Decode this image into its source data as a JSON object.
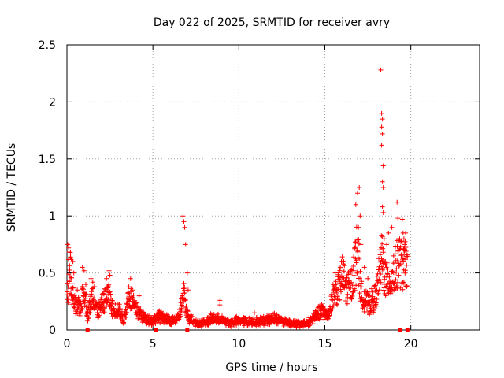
{
  "chart_data": {
    "type": "scatter",
    "title": "Day 022 of 2025, SRMTID for receiver avry",
    "xlabel": "GPS time / hours",
    "ylabel": "SRMTID / TECUs",
    "xlim": [
      0,
      24
    ],
    "ylim": [
      0,
      2.5
    ],
    "xticks": [
      0,
      5,
      10,
      15,
      20
    ],
    "yticks": [
      0,
      0.5,
      1,
      1.5,
      2,
      2.5
    ],
    "xtick_labels": [
      "0",
      "5",
      "10",
      "15",
      "20"
    ],
    "ytick_labels": [
      "0",
      "0.5",
      "1",
      "1.5",
      "2",
      "2.5"
    ],
    "grid": true,
    "marker": "+",
    "color": "#ff0000",
    "series": [
      {
        "name": "SRMTID",
        "profile": [
          [
            0.0,
            0.25
          ],
          [
            0.15,
            0.55
          ],
          [
            0.3,
            0.3
          ],
          [
            0.5,
            0.18
          ],
          [
            0.8,
            0.2
          ],
          [
            1.0,
            0.35
          ],
          [
            1.2,
            0.12
          ],
          [
            1.5,
            0.3
          ],
          [
            1.8,
            0.15
          ],
          [
            2.0,
            0.2
          ],
          [
            2.4,
            0.3
          ],
          [
            2.7,
            0.15
          ],
          [
            3.0,
            0.18
          ],
          [
            3.3,
            0.08
          ],
          [
            3.6,
            0.3
          ],
          [
            4.0,
            0.18
          ],
          [
            4.5,
            0.1
          ],
          [
            5.0,
            0.08
          ],
          [
            5.5,
            0.12
          ],
          [
            6.0,
            0.07
          ],
          [
            6.5,
            0.1
          ],
          [
            6.8,
            0.3
          ],
          [
            7.0,
            0.12
          ],
          [
            7.5,
            0.06
          ],
          [
            8.0,
            0.06
          ],
          [
            8.5,
            0.1
          ],
          [
            9.0,
            0.08
          ],
          [
            9.5,
            0.06
          ],
          [
            10.0,
            0.08
          ],
          [
            10.5,
            0.07
          ],
          [
            11.0,
            0.07
          ],
          [
            11.5,
            0.08
          ],
          [
            12.0,
            0.1
          ],
          [
            12.5,
            0.08
          ],
          [
            13.0,
            0.06
          ],
          [
            13.5,
            0.05
          ],
          [
            14.0,
            0.06
          ],
          [
            14.5,
            0.12
          ],
          [
            14.8,
            0.16
          ],
          [
            15.2,
            0.12
          ],
          [
            15.5,
            0.3
          ],
          [
            15.8,
            0.35
          ],
          [
            16.0,
            0.45
          ],
          [
            16.3,
            0.35
          ],
          [
            16.6,
            0.4
          ],
          [
            16.9,
            0.7
          ],
          [
            17.1,
            0.3
          ],
          [
            17.5,
            0.22
          ],
          [
            17.8,
            0.25
          ],
          [
            18.0,
            0.3
          ],
          [
            18.3,
            0.6
          ],
          [
            18.6,
            0.4
          ],
          [
            19.0,
            0.45
          ],
          [
            19.3,
            0.6
          ],
          [
            19.6,
            0.5
          ],
          [
            19.8,
            0.6
          ]
        ],
        "spikes": [
          [
            0.05,
            0.75
          ],
          [
            0.1,
            0.72
          ],
          [
            0.2,
            0.68
          ],
          [
            0.25,
            0.62
          ],
          [
            0.35,
            0.6
          ],
          [
            0.4,
            0.5
          ],
          [
            0.6,
            0.35
          ],
          [
            0.9,
            0.55
          ],
          [
            1.0,
            0.52
          ],
          [
            1.1,
            0.4
          ],
          [
            1.4,
            0.45
          ],
          [
            1.5,
            0.42
          ],
          [
            1.6,
            0.38
          ],
          [
            2.3,
            0.45
          ],
          [
            2.45,
            0.52
          ],
          [
            2.5,
            0.48
          ],
          [
            3.7,
            0.45
          ],
          [
            3.8,
            0.35
          ],
          [
            4.2,
            0.3
          ],
          [
            6.75,
            1.0
          ],
          [
            6.8,
            0.95
          ],
          [
            6.85,
            0.9
          ],
          [
            6.9,
            0.75
          ],
          [
            7.0,
            0.5
          ],
          [
            7.05,
            0.35
          ],
          [
            8.9,
            0.22
          ],
          [
            8.9,
            0.26
          ],
          [
            10.9,
            0.15
          ],
          [
            14.9,
            0.2
          ],
          [
            15.6,
            0.5
          ],
          [
            15.9,
            0.55
          ],
          [
            16.1,
            0.6
          ],
          [
            16.8,
            1.1
          ],
          [
            16.9,
            1.2
          ],
          [
            17.0,
            1.25
          ],
          [
            17.05,
            1.0
          ],
          [
            16.95,
            0.9
          ],
          [
            17.1,
            0.75
          ],
          [
            17.3,
            0.55
          ],
          [
            17.5,
            0.45
          ],
          [
            18.25,
            2.28
          ],
          [
            18.3,
            1.9
          ],
          [
            18.35,
            1.85
          ],
          [
            18.3,
            1.78
          ],
          [
            18.35,
            1.72
          ],
          [
            18.3,
            1.62
          ],
          [
            18.4,
            1.44
          ],
          [
            18.35,
            1.3
          ],
          [
            18.4,
            1.25
          ],
          [
            18.35,
            1.08
          ],
          [
            18.4,
            1.03
          ],
          [
            18.35,
            0.82
          ],
          [
            18.45,
            0.8
          ],
          [
            18.6,
            0.75
          ],
          [
            18.7,
            0.85
          ],
          [
            18.9,
            0.9
          ],
          [
            19.0,
            0.65
          ],
          [
            19.2,
            1.12
          ],
          [
            19.25,
            0.98
          ],
          [
            19.5,
            0.97
          ],
          [
            19.55,
            0.85
          ],
          [
            19.6,
            0.8
          ],
          [
            19.7,
            0.85
          ],
          [
            19.65,
            0.75
          ],
          [
            19.6,
            0.7
          ],
          [
            19.7,
            0.62
          ]
        ],
        "zero_points": [
          1.2,
          5.2,
          7.0,
          19.4,
          19.8
        ]
      }
    ]
  }
}
